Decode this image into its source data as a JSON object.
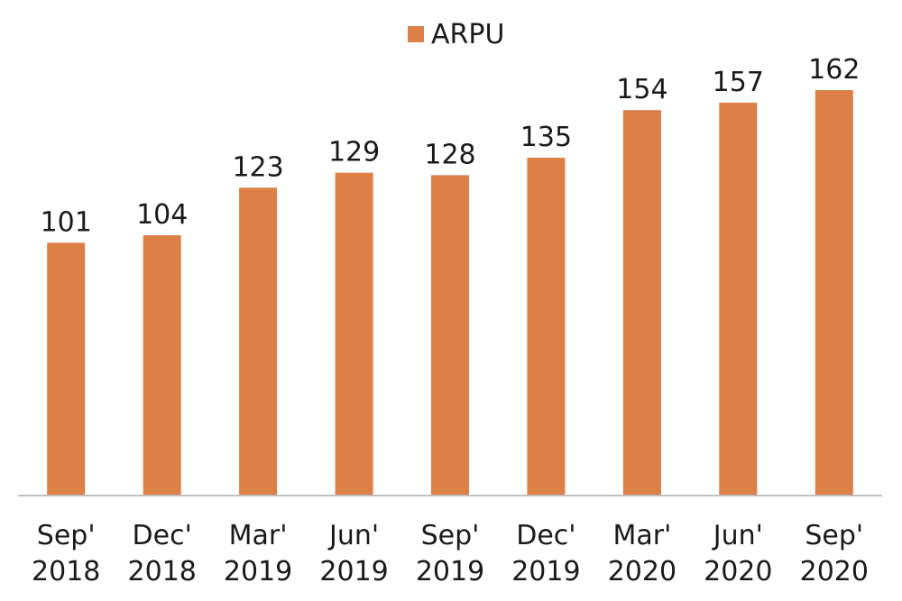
{
  "chart_data": {
    "type": "bar",
    "categories": [
      [
        "Sep'",
        "2018"
      ],
      [
        "Dec'",
        "2018"
      ],
      [
        "Mar'",
        "2019"
      ],
      [
        "Jun'",
        "2019"
      ],
      [
        "Sep'",
        "2019"
      ],
      [
        "Dec'",
        "2019"
      ],
      [
        "Mar'",
        "2020"
      ],
      [
        "Jun'",
        "2020"
      ],
      [
        "Sep'",
        "2020"
      ]
    ],
    "series": [
      {
        "name": "ARPU",
        "color": "#dc8047",
        "values": [
          101,
          104,
          123,
          129,
          128,
          135,
          154,
          157,
          162
        ]
      }
    ],
    "data_labels": true,
    "legend_position": "top-center",
    "ylim": [
      0,
      180
    ],
    "grid": false,
    "axis_color": "#bfbfbf"
  }
}
